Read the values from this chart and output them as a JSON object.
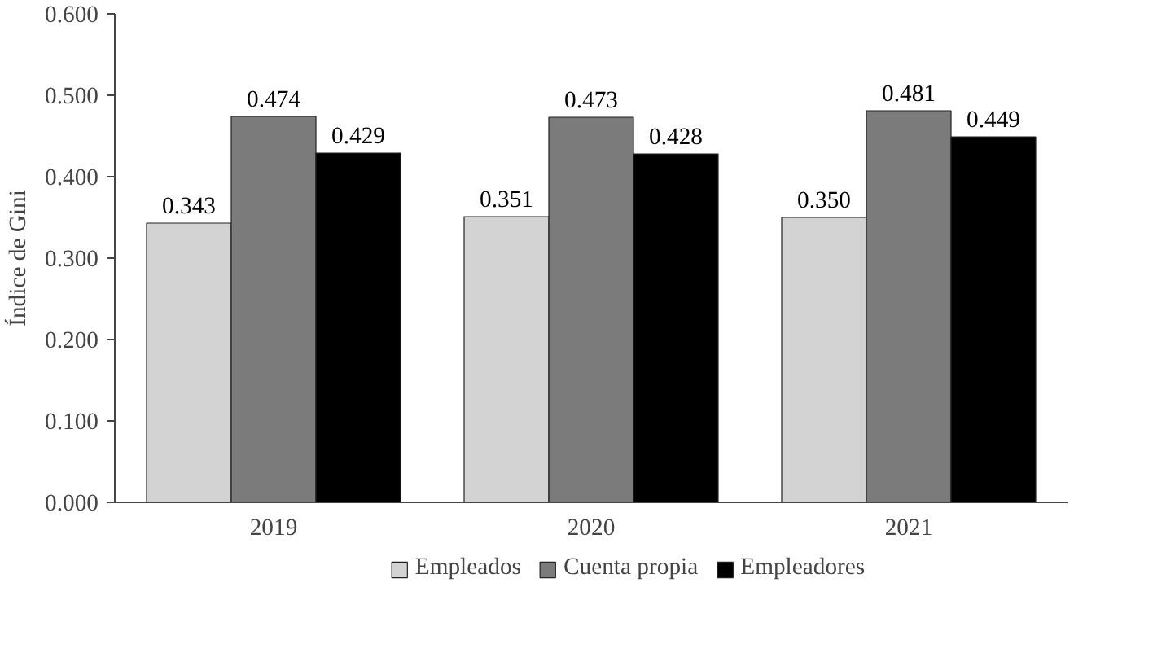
{
  "chart_data": {
    "type": "bar",
    "ylabel": "Índice de Gini",
    "categories": [
      "2019",
      "2020",
      "2021"
    ],
    "series": [
      {
        "name": "Empleados",
        "color": "#d3d3d3",
        "values": [
          0.343,
          0.351,
          0.35
        ],
        "value_labels": [
          "0.343",
          "0.351",
          "0.350"
        ]
      },
      {
        "name": "Cuenta propia",
        "color": "#7b7b7b",
        "values": [
          0.474,
          0.473,
          0.481
        ],
        "value_labels": [
          "0.474",
          "0.473",
          "0.481"
        ]
      },
      {
        "name": "Empleadores",
        "color": "#000000",
        "values": [
          0.429,
          0.428,
          0.449
        ],
        "value_labels": [
          "0.429",
          "0.428",
          "0.449"
        ]
      }
    ],
    "ylim": [
      0,
      0.6
    ],
    "yticks": [
      {
        "value": 0,
        "label": "0.000"
      },
      {
        "value": 0.1,
        "label": "0.100"
      },
      {
        "value": 0.2,
        "label": "0.200"
      },
      {
        "value": 0.3,
        "label": "0.300"
      },
      {
        "value": 0.4,
        "label": "0.400"
      },
      {
        "value": 0.5,
        "label": "0.500"
      },
      {
        "value": 0.6,
        "label": "0.600"
      }
    ],
    "grid": false,
    "legend": "bottom"
  }
}
